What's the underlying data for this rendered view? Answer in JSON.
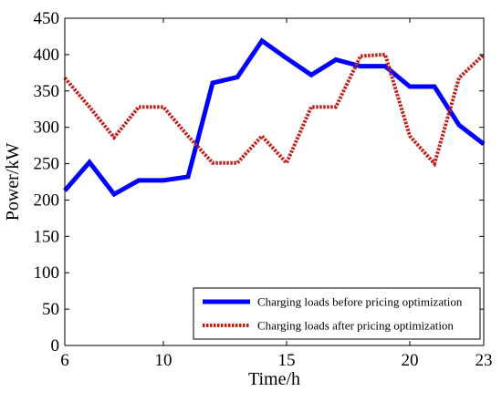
{
  "chart_data": {
    "type": "line",
    "title": "",
    "xlabel": "Time/h",
    "ylabel": "Power/kW",
    "xlim": [
      6,
      23
    ],
    "ylim": [
      0,
      450
    ],
    "xticks": [
      6,
      10,
      15,
      20,
      23
    ],
    "yticks": [
      0,
      50,
      100,
      150,
      200,
      250,
      300,
      350,
      400,
      450
    ],
    "grid": false,
    "legend_position": "bottom-right",
    "x": [
      6,
      7,
      8,
      9,
      10,
      11,
      12,
      13,
      14,
      15,
      16,
      17,
      18,
      19,
      20,
      21,
      22,
      23
    ],
    "series": [
      {
        "name": "Charging loads before pricing optimization",
        "color": "#0000ff",
        "style": "solid",
        "values": [
          213,
          252,
          208,
          227,
          227,
          232,
          361,
          369,
          419,
          395,
          372,
          393,
          384,
          384,
          356,
          356,
          303,
          277
        ]
      },
      {
        "name": "Charging loads after pricing optimization",
        "color": "#c0201a",
        "style": "dotted",
        "values": [
          368,
          328,
          286,
          328,
          328,
          288,
          251,
          251,
          288,
          251,
          328,
          328,
          398,
          400,
          288,
          250,
          368,
          400
        ]
      }
    ]
  }
}
